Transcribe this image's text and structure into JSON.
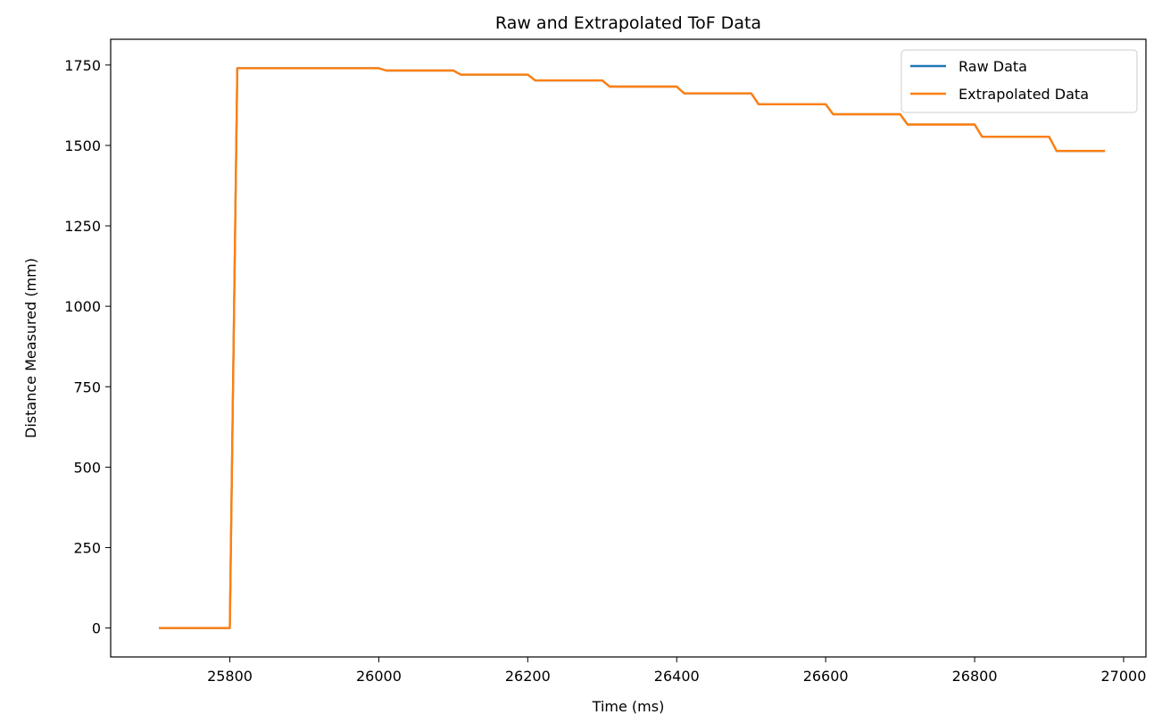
{
  "chart_data": {
    "type": "line",
    "title": "Raw and Extrapolated ToF Data",
    "xlabel": "Time (ms)",
    "ylabel": "Distance Measured (mm)",
    "xlim": [
      25640,
      27030
    ],
    "ylim": [
      -90,
      1830
    ],
    "xticks": [
      25800,
      26000,
      26200,
      26400,
      26600,
      26800,
      27000
    ],
    "yticks": [
      0,
      250,
      500,
      750,
      1000,
      1250,
      1500,
      1750
    ],
    "grid": false,
    "legend": "top-right",
    "series": [
      {
        "name": "Raw Data",
        "color": "#1f77b4",
        "x": [
          25705,
          25800,
          25810,
          26000,
          26010,
          26100,
          26110,
          26200,
          26210,
          26300,
          26310,
          26400,
          26410,
          26500,
          26510,
          26600,
          26610,
          26700,
          26710,
          26800,
          26810,
          26900,
          26910,
          26975
        ],
        "y": [
          0,
          0,
          1740,
          1740,
          1733,
          1733,
          1720,
          1720,
          1702,
          1702,
          1683,
          1683,
          1662,
          1662,
          1628,
          1628,
          1597,
          1597,
          1565,
          1565,
          1527,
          1527,
          1483,
          1483
        ]
      },
      {
        "name": "Extrapolated Data",
        "color": "#ff7f0e",
        "x": [
          25705,
          25800,
          25810,
          26000,
          26010,
          26100,
          26110,
          26200,
          26210,
          26300,
          26310,
          26400,
          26410,
          26500,
          26510,
          26600,
          26610,
          26700,
          26710,
          26800,
          26810,
          26900,
          26910,
          26975
        ],
        "y": [
          0,
          0,
          1740,
          1740,
          1733,
          1733,
          1720,
          1720,
          1702,
          1702,
          1683,
          1683,
          1662,
          1662,
          1628,
          1628,
          1597,
          1597,
          1565,
          1565,
          1527,
          1527,
          1483,
          1483
        ]
      }
    ]
  }
}
